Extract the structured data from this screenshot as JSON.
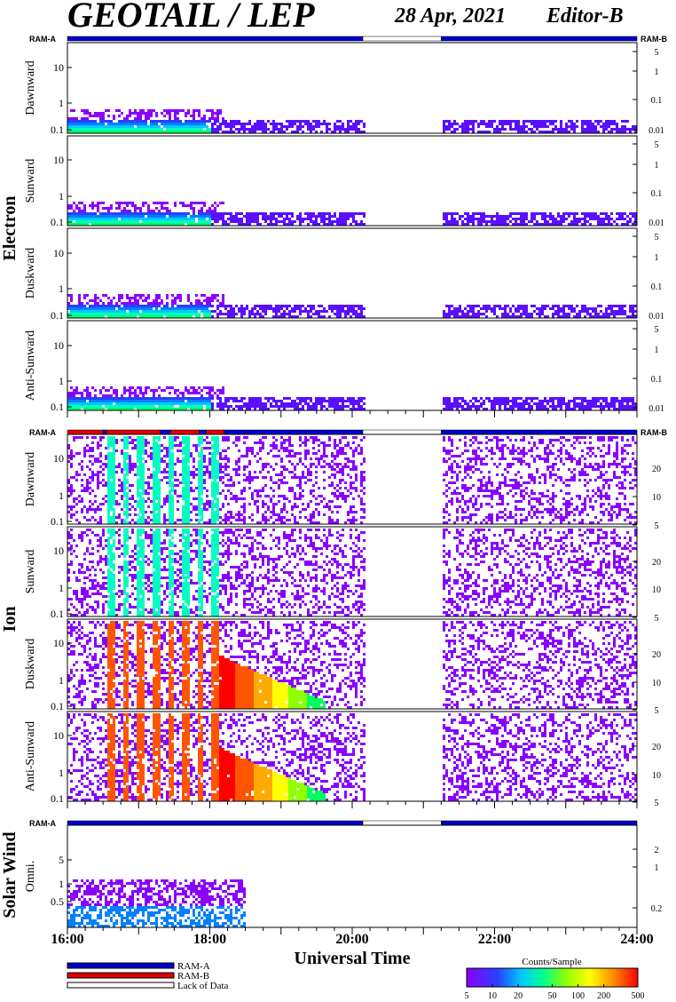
{
  "header": {
    "title": "GEOTAIL / LEP",
    "date": "28 Apr, 2021",
    "editor": "Editor-B"
  },
  "chart_data": {
    "type": "heatmap",
    "x_axis": {
      "title": "Universal Time",
      "ticks": [
        "16:00",
        "18:00",
        "20:00",
        "22:00",
        "24:00"
      ],
      "range_hours": [
        16,
        24
      ]
    },
    "data_gaps_hours": [
      [
        20.15,
        21.25
      ]
    ],
    "groups": [
      {
        "name": "Electron",
        "ram_labels": [
          "RAM-A",
          "RAM-B"
        ],
        "ram_status": [
          {
            "from": 16.0,
            "to": 20.15,
            "mode": "RAM-A"
          },
          {
            "from": 20.15,
            "to": 21.25,
            "mode": "Lack of Data"
          },
          {
            "from": 21.25,
            "to": 24.0,
            "mode": "RAM-A"
          }
        ],
        "panels": [
          {
            "label": "Dawnward",
            "left_ticks": [
              "10",
              "1",
              "0.1"
            ],
            "right_ticks": [
              "5",
              "1",
              "0.1",
              "0.01"
            ]
          },
          {
            "label": "Sunward",
            "left_ticks": [
              "10",
              "1",
              "0.1"
            ],
            "right_ticks": [
              "5",
              "1",
              "0.1",
              "0.01"
            ]
          },
          {
            "label": "Duskward",
            "left_ticks": [
              "10",
              "1",
              "0.1"
            ],
            "right_ticks": [
              "5",
              "1",
              "0.1",
              "0.01"
            ]
          },
          {
            "label": "Anti-Sunward",
            "left_ticks": [
              "10",
              "1",
              "0.1"
            ],
            "right_ticks": [
              "5",
              "1",
              "0.1",
              "0.01"
            ]
          }
        ]
      },
      {
        "name": "Ion",
        "ram_labels": [
          "RAM-A",
          "RAM-B"
        ],
        "ram_status": [
          {
            "from": 16.0,
            "to": 16.5,
            "mode": "RAM-B"
          },
          {
            "from": 16.5,
            "to": 16.55,
            "mode": "RAM-A"
          },
          {
            "from": 16.55,
            "to": 17.3,
            "mode": "RAM-B"
          },
          {
            "from": 17.3,
            "to": 17.45,
            "mode": "RAM-A"
          },
          {
            "from": 17.45,
            "to": 17.85,
            "mode": "RAM-B"
          },
          {
            "from": 17.85,
            "to": 17.95,
            "mode": "RAM-A"
          },
          {
            "from": 17.95,
            "to": 18.2,
            "mode": "RAM-B"
          },
          {
            "from": 18.2,
            "to": 20.15,
            "mode": "RAM-A"
          },
          {
            "from": 20.15,
            "to": 21.25,
            "mode": "Lack of Data"
          },
          {
            "from": 21.25,
            "to": 24.0,
            "mode": "RAM-A"
          }
        ],
        "panels": [
          {
            "label": "Dawnward",
            "left_ticks": [
              "10",
              "1",
              "0.1"
            ],
            "right_ticks": [
              "20",
              "10",
              "5"
            ]
          },
          {
            "label": "Sunward",
            "left_ticks": [
              "10",
              "1",
              "0.1"
            ],
            "right_ticks": [
              "20",
              "10",
              "5"
            ]
          },
          {
            "label": "Duskward",
            "left_ticks": [
              "10",
              "1",
              "0.1"
            ],
            "right_ticks": [
              "20",
              "10",
              "5"
            ]
          },
          {
            "label": "Anti-Sunward",
            "left_ticks": [
              "10",
              "1",
              "0.1"
            ],
            "right_ticks": [
              "20",
              "10",
              "5"
            ]
          }
        ]
      },
      {
        "name": "Solar Wind",
        "ram_labels": [
          "RAM-A",
          ""
        ],
        "ram_status": [
          {
            "from": 16.0,
            "to": 20.15,
            "mode": "RAM-A"
          },
          {
            "from": 20.15,
            "to": 21.25,
            "mode": "Lack of Data"
          },
          {
            "from": 21.25,
            "to": 24.0,
            "mode": "RAM-A"
          }
        ],
        "panels": [
          {
            "label": "Omni.",
            "left_ticks": [
              "5",
              "1",
              "0.5"
            ],
            "right_ticks": [
              "2",
              "1",
              "0.2"
            ]
          }
        ]
      }
    ],
    "legend": {
      "items": [
        {
          "label": "RAM-A",
          "color": "#0000cc"
        },
        {
          "label": "RAM-B",
          "color": "#dd0000"
        },
        {
          "label": "Lack of Data",
          "color": "#ffffff"
        }
      ]
    },
    "colorbar": {
      "title": "Counts/Sample",
      "ticks": [
        "5",
        "10",
        "20",
        "50",
        "100",
        "200",
        "500"
      ],
      "values": [
        5,
        10,
        20,
        50,
        100,
        200,
        500
      ]
    }
  }
}
